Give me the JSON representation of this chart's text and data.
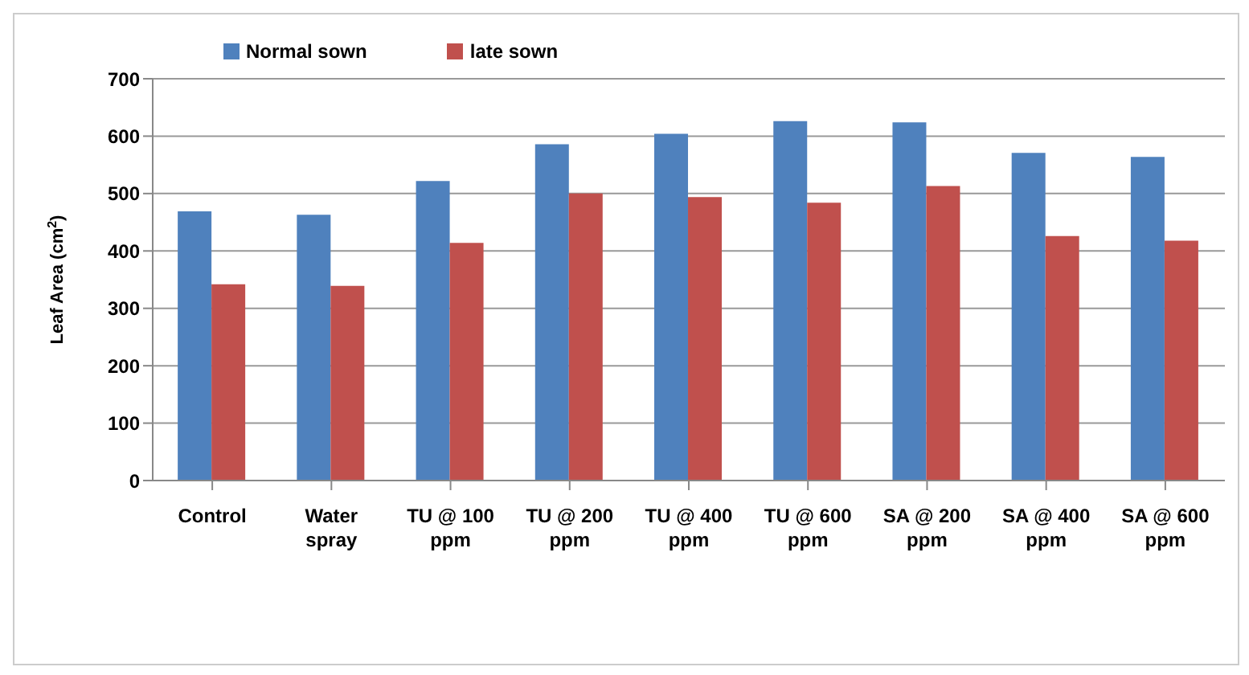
{
  "chart_data": {
    "type": "bar",
    "ylabel": "Leaf Area (cm$^{2}$)",
    "categories": [
      "Control",
      "Water spray",
      "TU @ 100 ppm",
      "TU @ 200 ppm",
      "TU @ 400 ppm",
      "TU @ 600 ppm",
      "SA @ 200 ppm",
      "SA @ 400 ppm",
      "SA @ 600 ppm"
    ],
    "series": [
      {
        "name": "Normal sown",
        "color": "#4f81bd",
        "values": [
          469,
          463,
          522,
          586,
          604,
          626,
          624,
          571,
          564
        ]
      },
      {
        "name": "late sown",
        "color": "#c0504d",
        "values": [
          342,
          339,
          414,
          500,
          494,
          484,
          513,
          426,
          418
        ]
      }
    ],
    "ylim": [
      0,
      700
    ],
    "yticks": [
      0,
      100,
      200,
      300,
      400,
      500,
      600,
      700
    ],
    "grid": "y",
    "legend": "top left"
  }
}
